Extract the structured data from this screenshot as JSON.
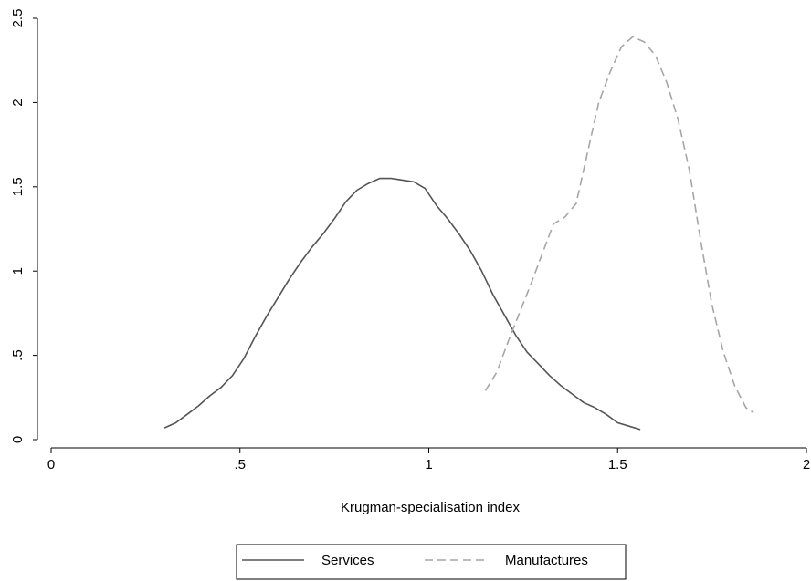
{
  "chart_data": {
    "type": "line",
    "title": "",
    "xlabel": "Krugman-specialisation index",
    "ylabel": "",
    "xlim": [
      0,
      2
    ],
    "ylim": [
      0,
      2.5
    ],
    "x_ticks": [
      0,
      0.5,
      1,
      1.5,
      2
    ],
    "x_tick_labels": [
      "0",
      ".5",
      "1",
      "1.5",
      "2"
    ],
    "y_ticks": [
      0,
      0.5,
      1,
      1.5,
      2,
      2.5
    ],
    "y_tick_labels": [
      "0",
      ".5",
      "1",
      "1.5",
      "2",
      "2.5"
    ],
    "grid": false,
    "legend_position": "bottom",
    "series": [
      {
        "name": "Services",
        "color": "#555555",
        "style": "solid",
        "points": [
          [
            0.3,
            0.07
          ],
          [
            0.33,
            0.1
          ],
          [
            0.36,
            0.15
          ],
          [
            0.39,
            0.2
          ],
          [
            0.42,
            0.26
          ],
          [
            0.45,
            0.31
          ],
          [
            0.48,
            0.38
          ],
          [
            0.51,
            0.48
          ],
          [
            0.54,
            0.61
          ],
          [
            0.57,
            0.73
          ],
          [
            0.6,
            0.84
          ],
          [
            0.63,
            0.95
          ],
          [
            0.66,
            1.05
          ],
          [
            0.69,
            1.14
          ],
          [
            0.72,
            1.22
          ],
          [
            0.75,
            1.31
          ],
          [
            0.78,
            1.41
          ],
          [
            0.81,
            1.48
          ],
          [
            0.84,
            1.52
          ],
          [
            0.87,
            1.55
          ],
          [
            0.9,
            1.55
          ],
          [
            0.93,
            1.54
          ],
          [
            0.96,
            1.53
          ],
          [
            0.99,
            1.49
          ],
          [
            1.02,
            1.39
          ],
          [
            1.05,
            1.31
          ],
          [
            1.08,
            1.22
          ],
          [
            1.11,
            1.12
          ],
          [
            1.14,
            1.0
          ],
          [
            1.17,
            0.86
          ],
          [
            1.2,
            0.74
          ],
          [
            1.23,
            0.62
          ],
          [
            1.26,
            0.52
          ],
          [
            1.29,
            0.45
          ],
          [
            1.32,
            0.38
          ],
          [
            1.35,
            0.32
          ],
          [
            1.38,
            0.27
          ],
          [
            1.41,
            0.22
          ],
          [
            1.44,
            0.19
          ],
          [
            1.47,
            0.15
          ],
          [
            1.5,
            0.1
          ],
          [
            1.53,
            0.08
          ],
          [
            1.56,
            0.06
          ]
        ]
      },
      {
        "name": "Manufactures",
        "color": "#a6a6a6",
        "style": "dashed",
        "points": [
          [
            1.15,
            0.29
          ],
          [
            1.18,
            0.4
          ],
          [
            1.21,
            0.58
          ],
          [
            1.24,
            0.75
          ],
          [
            1.27,
            0.92
          ],
          [
            1.3,
            1.1
          ],
          [
            1.33,
            1.28
          ],
          [
            1.36,
            1.32
          ],
          [
            1.39,
            1.4
          ],
          [
            1.42,
            1.7
          ],
          [
            1.45,
            2.0
          ],
          [
            1.48,
            2.18
          ],
          [
            1.51,
            2.33
          ],
          [
            1.54,
            2.39
          ],
          [
            1.57,
            2.36
          ],
          [
            1.6,
            2.28
          ],
          [
            1.63,
            2.12
          ],
          [
            1.66,
            1.9
          ],
          [
            1.69,
            1.6
          ],
          [
            1.72,
            1.18
          ],
          [
            1.75,
            0.8
          ],
          [
            1.78,
            0.52
          ],
          [
            1.81,
            0.32
          ],
          [
            1.84,
            0.19
          ],
          [
            1.86,
            0.16
          ]
        ]
      }
    ]
  }
}
